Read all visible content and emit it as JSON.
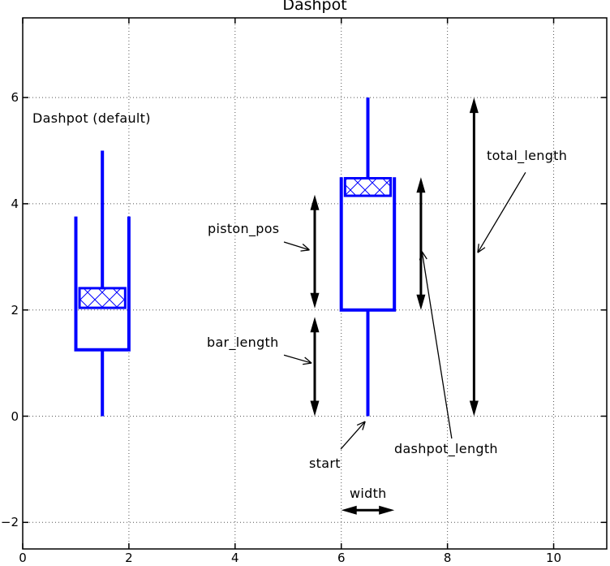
{
  "title": "Dashpot",
  "labels": {
    "dashpot_default": "Dashpot (default)",
    "piston_pos": "piston_pos",
    "bar_length": "bar_length",
    "total_length": "total_length",
    "dashpot_length": "dashpot_length",
    "start": "start",
    "width": "width"
  },
  "chart_data": {
    "type": "diagram",
    "title": "Dashpot",
    "xlim": [
      0,
      11
    ],
    "ylim": [
      -2.5,
      7.5
    ],
    "xticks": [
      {
        "value": 0,
        "label": "0"
      },
      {
        "value": 2,
        "label": "2"
      },
      {
        "value": 4,
        "label": "4"
      },
      {
        "value": 6,
        "label": "6"
      },
      {
        "value": 8,
        "label": "8"
      },
      {
        "value": 10,
        "label": "10"
      }
    ],
    "yticks": [
      {
        "value": -2,
        "label": "−2"
      },
      {
        "value": 0,
        "label": "0"
      },
      {
        "value": 2,
        "label": "2"
      },
      {
        "value": 4,
        "label": "4"
      },
      {
        "value": 6,
        "label": "6"
      }
    ],
    "grid": true,
    "colors": {
      "sketch": "#0000ff",
      "annotation": "#000000",
      "grid": "#555555",
      "frame": "#000000",
      "background": "#ffffff"
    },
    "shapes": [
      {
        "name": "dashpot-default",
        "label": "Dashpot (default)",
        "polylines": [
          [
            [
              1.5,
              5.0
            ],
            [
              1.5,
              2.41
            ]
          ],
          [
            [
              1.0,
              3.76
            ],
            [
              1.0,
              1.25
            ],
            [
              2.0,
              1.25
            ],
            [
              2.0,
              3.76
            ]
          ],
          [
            [
              1.5,
              1.25
            ],
            [
              1.5,
              0.0
            ]
          ]
        ],
        "piston": {
          "x1": 1.07,
          "y1": 2.04,
          "x2": 1.93,
          "y2": 2.41,
          "hatch": "x"
        }
      },
      {
        "name": "dashpot-annotated",
        "label": "Dashpot",
        "polylines": [
          [
            [
              6.5,
              6.0
            ],
            [
              6.5,
              4.48
            ]
          ],
          [
            [
              6.0,
              4.5
            ],
            [
              6.0,
              2.0
            ],
            [
              7.0,
              2.0
            ],
            [
              7.0,
              4.5
            ]
          ],
          [
            [
              6.5,
              2.0
            ],
            [
              6.5,
              0.0
            ]
          ]
        ],
        "piston": {
          "x1": 6.07,
          "y1": 4.15,
          "x2": 6.93,
          "y2": 4.48,
          "hatch": "x"
        }
      }
    ],
    "dimension_arrows": [
      {
        "name": "piston_pos",
        "from": [
          5.5,
          2.03
        ],
        "to": [
          5.5,
          4.17
        ]
      },
      {
        "name": "bar_length",
        "from": [
          5.5,
          0.0
        ],
        "to": [
          5.5,
          1.87
        ]
      },
      {
        "name": "dashpot_length",
        "from": [
          7.5,
          2.0
        ],
        "to": [
          7.5,
          4.5
        ]
      },
      {
        "name": "total_length",
        "from": [
          8.5,
          0.0
        ],
        "to": [
          8.5,
          6.0
        ]
      },
      {
        "name": "width",
        "from": [
          6.0,
          -1.77
        ],
        "to": [
          7.0,
          -1.77
        ]
      }
    ],
    "leader_arrows": [
      {
        "name": "piston_pos",
        "from": [
          4.92,
          3.28
        ],
        "to": [
          5.4,
          3.13
        ]
      },
      {
        "name": "bar_length",
        "from": [
          4.92,
          1.15
        ],
        "to": [
          5.44,
          1.0
        ]
      },
      {
        "name": "total_length",
        "from": [
          9.47,
          4.59
        ],
        "to": [
          8.57,
          3.08
        ]
      },
      {
        "name": "dashpot_length",
        "from": [
          8.08,
          -0.42
        ],
        "to": [
          7.52,
          3.1
        ]
      },
      {
        "name": "start",
        "from": [
          5.99,
          -0.62
        ],
        "to": [
          6.45,
          -0.1
        ]
      }
    ]
  }
}
